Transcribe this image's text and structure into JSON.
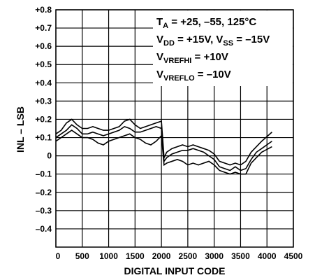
{
  "chart_data": {
    "type": "line",
    "xlabel": "DIGITAL INPUT CODE",
    "ylabel": "INL – LSB",
    "annotation": {
      "lines": [
        [
          "T",
          "A",
          " = +25, –55, 125°C"
        ],
        [
          "V",
          "DD",
          " = +15V, V",
          "SS",
          " = –15V"
        ],
        [
          "V",
          "VREFHI",
          " = +10V"
        ],
        [
          "V",
          "VREFLO",
          " = –10V"
        ]
      ]
    },
    "x": [
      0,
      100,
      200,
      300,
      400,
      500,
      600,
      700,
      800,
      900,
      1000,
      1100,
      1200,
      1300,
      1400,
      1500,
      1600,
      1700,
      1800,
      1900,
      2000,
      2050,
      2100,
      2200,
      2300,
      2400,
      2500,
      2600,
      2700,
      2800,
      2900,
      3000,
      3100,
      3200,
      3300,
      3400,
      3500,
      3600,
      3700,
      3800,
      3900,
      4095
    ],
    "series": [
      {
        "color": "#000000",
        "values": [
          0.12,
          0.14,
          0.18,
          0.2,
          0.17,
          0.15,
          0.15,
          0.16,
          0.15,
          0.14,
          0.14,
          0.15,
          0.16,
          0.19,
          0.2,
          0.17,
          0.15,
          0.16,
          0.17,
          0.18,
          0.19,
          -0.01,
          0.02,
          0.04,
          0.05,
          0.06,
          0.05,
          0.06,
          0.05,
          0.04,
          0.03,
          0.01,
          -0.03,
          -0.04,
          -0.05,
          -0.04,
          -0.05,
          -0.03,
          0.02,
          0.05,
          0.08,
          0.13
        ]
      },
      {
        "color": "#000000",
        "values": [
          0.1,
          0.12,
          0.14,
          0.17,
          0.15,
          0.12,
          0.12,
          0.13,
          0.12,
          0.11,
          0.12,
          0.13,
          0.14,
          0.16,
          0.15,
          0.13,
          0.13,
          0.14,
          0.15,
          0.16,
          0.15,
          -0.03,
          -0.01,
          0.01,
          0.02,
          0.03,
          0.03,
          0.04,
          0.03,
          0.02,
          0.0,
          -0.02,
          -0.06,
          -0.07,
          -0.08,
          -0.06,
          -0.08,
          -0.07,
          -0.02,
          0.02,
          0.04,
          0.08
        ]
      },
      {
        "color": "#000000",
        "values": [
          0.08,
          0.1,
          0.12,
          0.14,
          0.12,
          0.1,
          0.1,
          0.09,
          0.07,
          0.06,
          0.08,
          0.09,
          0.1,
          0.11,
          0.12,
          0.1,
          0.09,
          0.07,
          0.06,
          0.08,
          0.11,
          -0.05,
          -0.04,
          -0.03,
          -0.02,
          -0.03,
          -0.05,
          -0.04,
          -0.05,
          -0.04,
          -0.03,
          -0.05,
          -0.08,
          -0.09,
          -0.1,
          -0.09,
          -0.1,
          -0.1,
          -0.04,
          -0.01,
          0.02,
          0.05
        ]
      }
    ],
    "xlim": [
      0,
      4500
    ],
    "xticks": [
      0,
      500,
      1000,
      1500,
      2000,
      2500,
      3000,
      3500,
      4000,
      4500
    ],
    "ylim": [
      -0.5,
      0.8
    ],
    "yticks": [
      {
        "value": 0.8,
        "label": "+0.8"
      },
      {
        "value": 0.7,
        "label": "+0.7"
      },
      {
        "value": 0.6,
        "label": "+0.6"
      },
      {
        "value": 0.5,
        "label": "+0.5"
      },
      {
        "value": 0.4,
        "label": "+0.4"
      },
      {
        "value": 0.3,
        "label": "+0.3"
      },
      {
        "value": 0.2,
        "label": "+0.2"
      },
      {
        "value": 0.1,
        "label": "+0.1"
      },
      0,
      {
        "value": -0.1,
        "label": "–0.1"
      },
      {
        "value": -0.2,
        "label": "–0.2"
      },
      {
        "value": -0.3,
        "label": "–0.3"
      },
      {
        "value": -0.4,
        "label": "–0.4"
      }
    ],
    "grid": true
  }
}
